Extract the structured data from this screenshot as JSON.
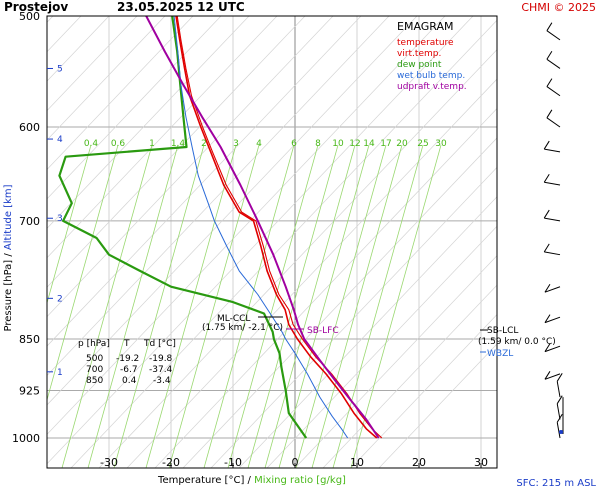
{
  "header": {
    "station": "Prostejov",
    "datetime": "23.05.2025 12 UTC",
    "credit": "CHMI © 2025",
    "credit_color": "#d40000"
  },
  "legend": {
    "title": "EMAGRAM",
    "items": [
      {
        "label": "temperature",
        "color": "#e00000"
      },
      {
        "label": "virt.temp.",
        "color": "#e00000"
      },
      {
        "label": "dew point",
        "color": "#2a9a10"
      },
      {
        "label": "wet bulb temp.",
        "color": "#2a6ad8"
      },
      {
        "label": "udpraft v.temp.",
        "color": "#a000a0"
      }
    ]
  },
  "table": {
    "header": [
      "p [hPa]",
      "T",
      "Td [°C]"
    ],
    "rows": [
      [
        "500",
        "-19.2",
        "-19.8"
      ],
      [
        "700",
        "-6.7",
        "-37.4"
      ],
      [
        "850",
        "0.4",
        "-3.4"
      ]
    ]
  },
  "annotations": {
    "ml_ccl": "ML-CCL",
    "ml_ccl_detail": "(1.75 km/ -2.1 °C)",
    "sb_lfc": "SB-LFC",
    "sb_lcl": "SB-LCL",
    "sb_lcl_detail": "(1.59 km/ 0.0 °C)",
    "wbzl": "WBZL"
  },
  "footer": {
    "sfc": "SFC: 215 m ASL"
  },
  "chart_data": {
    "type": "line",
    "title": "Prostejov 23.05.2025 12 UTC",
    "xlabel": "Temperature [°C]",
    "xlabel_extra": "Mixing ratio [g/kg]",
    "ylabel": "Pressure [hPa]",
    "ylabel_extra": "Altitude [km]",
    "xlim": [
      -40,
      35
    ],
    "ylim": [
      1050,
      500
    ],
    "y_scale": "log",
    "x_ticks": [
      -30,
      -20,
      -10,
      0,
      10,
      20,
      30
    ],
    "p_ticks": [
      500,
      600,
      700,
      850,
      925,
      1000
    ],
    "altitude_ticks": [
      {
        "label": "5",
        "p": 545
      },
      {
        "label": "4",
        "p": 612
      },
      {
        "label": "3",
        "p": 697
      },
      {
        "label": "2",
        "p": 795
      },
      {
        "label": "1",
        "p": 897
      }
    ],
    "mixing_ratio_labels": [
      "0.4",
      "0.6",
      "1",
      "1.4",
      "2",
      "3",
      "4",
      "6",
      "8",
      "10",
      "12",
      "14",
      "17",
      "20",
      "25",
      "30"
    ],
    "series": [
      {
        "name": "temperature",
        "color": "#e00000",
        "points": [
          [
            -19.2,
            500
          ],
          [
            -18.6,
            520
          ],
          [
            -17.8,
            545
          ],
          [
            -17.0,
            570
          ],
          [
            -15.2,
            600
          ],
          [
            -13.6,
            625
          ],
          [
            -11.5,
            660
          ],
          [
            -9.0,
            690
          ],
          [
            -6.7,
            700
          ],
          [
            -5.5,
            730
          ],
          [
            -4.5,
            760
          ],
          [
            -3.0,
            790
          ],
          [
            -1.6,
            810
          ],
          [
            -1.0,
            830
          ],
          [
            0.4,
            850
          ],
          [
            2.5,
            875
          ],
          [
            5.0,
            900
          ],
          [
            7.5,
            930
          ],
          [
            9.5,
            960
          ],
          [
            11.5,
            985
          ],
          [
            13.2,
            1000
          ]
        ]
      },
      {
        "name": "virt.temp.",
        "color": "#e00000",
        "points": [
          [
            -19.0,
            500
          ],
          [
            -18.4,
            520
          ],
          [
            -17.6,
            545
          ],
          [
            -16.7,
            570
          ],
          [
            -14.9,
            600
          ],
          [
            -13.3,
            625
          ],
          [
            -11.1,
            660
          ],
          [
            -8.6,
            690
          ],
          [
            -6.3,
            700
          ],
          [
            -5.1,
            730
          ],
          [
            -4.1,
            760
          ],
          [
            -2.6,
            790
          ],
          [
            -1.0,
            810
          ],
          [
            -0.3,
            830
          ],
          [
            1.2,
            850
          ],
          [
            3.3,
            875
          ],
          [
            5.9,
            900
          ],
          [
            8.4,
            930
          ],
          [
            10.4,
            960
          ],
          [
            12.4,
            985
          ],
          [
            14.0,
            1000
          ]
        ]
      },
      {
        "name": "dew point",
        "color": "#2a9a10",
        "points": [
          [
            -19.8,
            500
          ],
          [
            -19.0,
            530
          ],
          [
            -18.5,
            560
          ],
          [
            -18.0,
            590
          ],
          [
            -17.5,
            620
          ],
          [
            -37.0,
            630
          ],
          [
            -38.0,
            650
          ],
          [
            -36.0,
            680
          ],
          [
            -37.4,
            700
          ],
          [
            -32.0,
            720
          ],
          [
            -30.0,
            740
          ],
          [
            -25.0,
            760
          ],
          [
            -20.0,
            780
          ],
          [
            -10.0,
            800
          ],
          [
            -5.0,
            815
          ],
          [
            -3.6,
            840
          ],
          [
            -3.4,
            850
          ],
          [
            -2.5,
            870
          ],
          [
            -2.2,
            890
          ],
          [
            -1.5,
            925
          ],
          [
            -1.0,
            960
          ],
          [
            1.8,
            1000
          ]
        ]
      },
      {
        "name": "wet bulb temp.",
        "color": "#2a6ad8",
        "points": [
          [
            -19.5,
            500
          ],
          [
            -18.9,
            530
          ],
          [
            -18.4,
            560
          ],
          [
            -17.6,
            590
          ],
          [
            -16.6,
            620
          ],
          [
            -15.6,
            650
          ],
          [
            -14.0,
            680
          ],
          [
            -13.0,
            700
          ],
          [
            -11.0,
            730
          ],
          [
            -9.0,
            760
          ],
          [
            -6.0,
            790
          ],
          [
            -4.0,
            815
          ],
          [
            -2.1,
            840
          ],
          [
            -1.5,
            850
          ],
          [
            0.0,
            870
          ],
          [
            2.0,
            900
          ],
          [
            4.0,
            935
          ],
          [
            6.0,
            965
          ],
          [
            7.5,
            985
          ],
          [
            8.5,
            1000
          ]
        ]
      },
      {
        "name": "udpraft v.temp.",
        "color": "#a000a0",
        "points": [
          [
            -24.0,
            500
          ],
          [
            -21.0,
            530
          ],
          [
            -18.0,
            560
          ],
          [
            -15.0,
            590
          ],
          [
            -12.0,
            620
          ],
          [
            -8.8,
            660
          ],
          [
            -6.0,
            700
          ],
          [
            -3.5,
            740
          ],
          [
            -1.5,
            780
          ],
          [
            -0.2,
            810
          ],
          [
            0.5,
            830
          ],
          [
            1.5,
            850
          ],
          [
            4.0,
            880
          ],
          [
            6.5,
            910
          ],
          [
            9.0,
            940
          ],
          [
            11.5,
            970
          ],
          [
            13.5,
            1000
          ]
        ]
      }
    ]
  },
  "wind_profile": {
    "levels_hpa": [
      520,
      545,
      570,
      600,
      625,
      660,
      700,
      740,
      780,
      820,
      860,
      900,
      935,
      970,
      1000
    ]
  }
}
